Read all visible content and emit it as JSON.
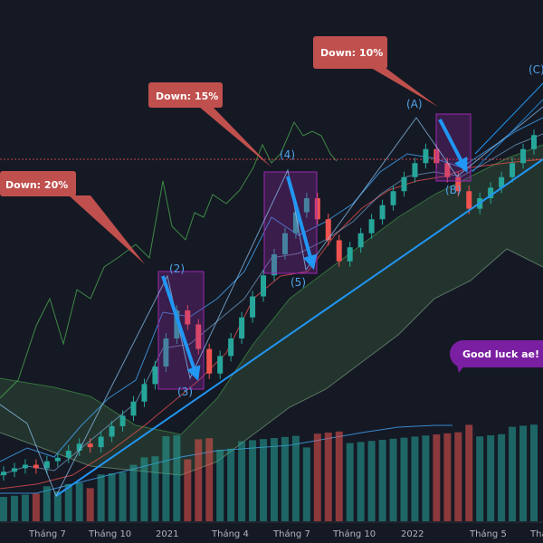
{
  "chart_data": {
    "type": "candlestick",
    "title": "",
    "xlabel": "",
    "ylabel": "",
    "x_ticks": [
      "Tháng 7",
      "Tháng 10",
      "2021",
      "Tháng 4",
      "Tháng 7",
      "Tháng 10",
      "2022",
      "Tháng 5",
      "Tháng"
    ],
    "wave_labels": [
      "(2)",
      "(3)",
      "(4)",
      "(5)",
      "(A)",
      "(B)",
      "(C)"
    ],
    "callouts": [
      "Down: 20%",
      "Down: 15%",
      "Down: 10%"
    ],
    "note": "Good luck ae!  Ký",
    "colors": {
      "background": "#151924",
      "up": "#26a69a",
      "down": "#ef5350",
      "trendline": "#2196f3",
      "callout": "#c0504d",
      "correction_box": "#9c27b0",
      "note_bubble": "#7b1fa2",
      "support_line": "#ef5350"
    },
    "series": [
      {
        "name": "price",
        "values": [
          20,
          21,
          22,
          21,
          23,
          24,
          26,
          28,
          27,
          30,
          33,
          36,
          40,
          45,
          50,
          58,
          66,
          62,
          55,
          48,
          53,
          58,
          64,
          70,
          76,
          82,
          88,
          94,
          98,
          92,
          86,
          80,
          84,
          88,
          92,
          96,
          100,
          104,
          108,
          112,
          108,
          104,
          100,
          95,
          98,
          101,
          104,
          108,
          112,
          116
        ]
      }
    ]
  }
}
